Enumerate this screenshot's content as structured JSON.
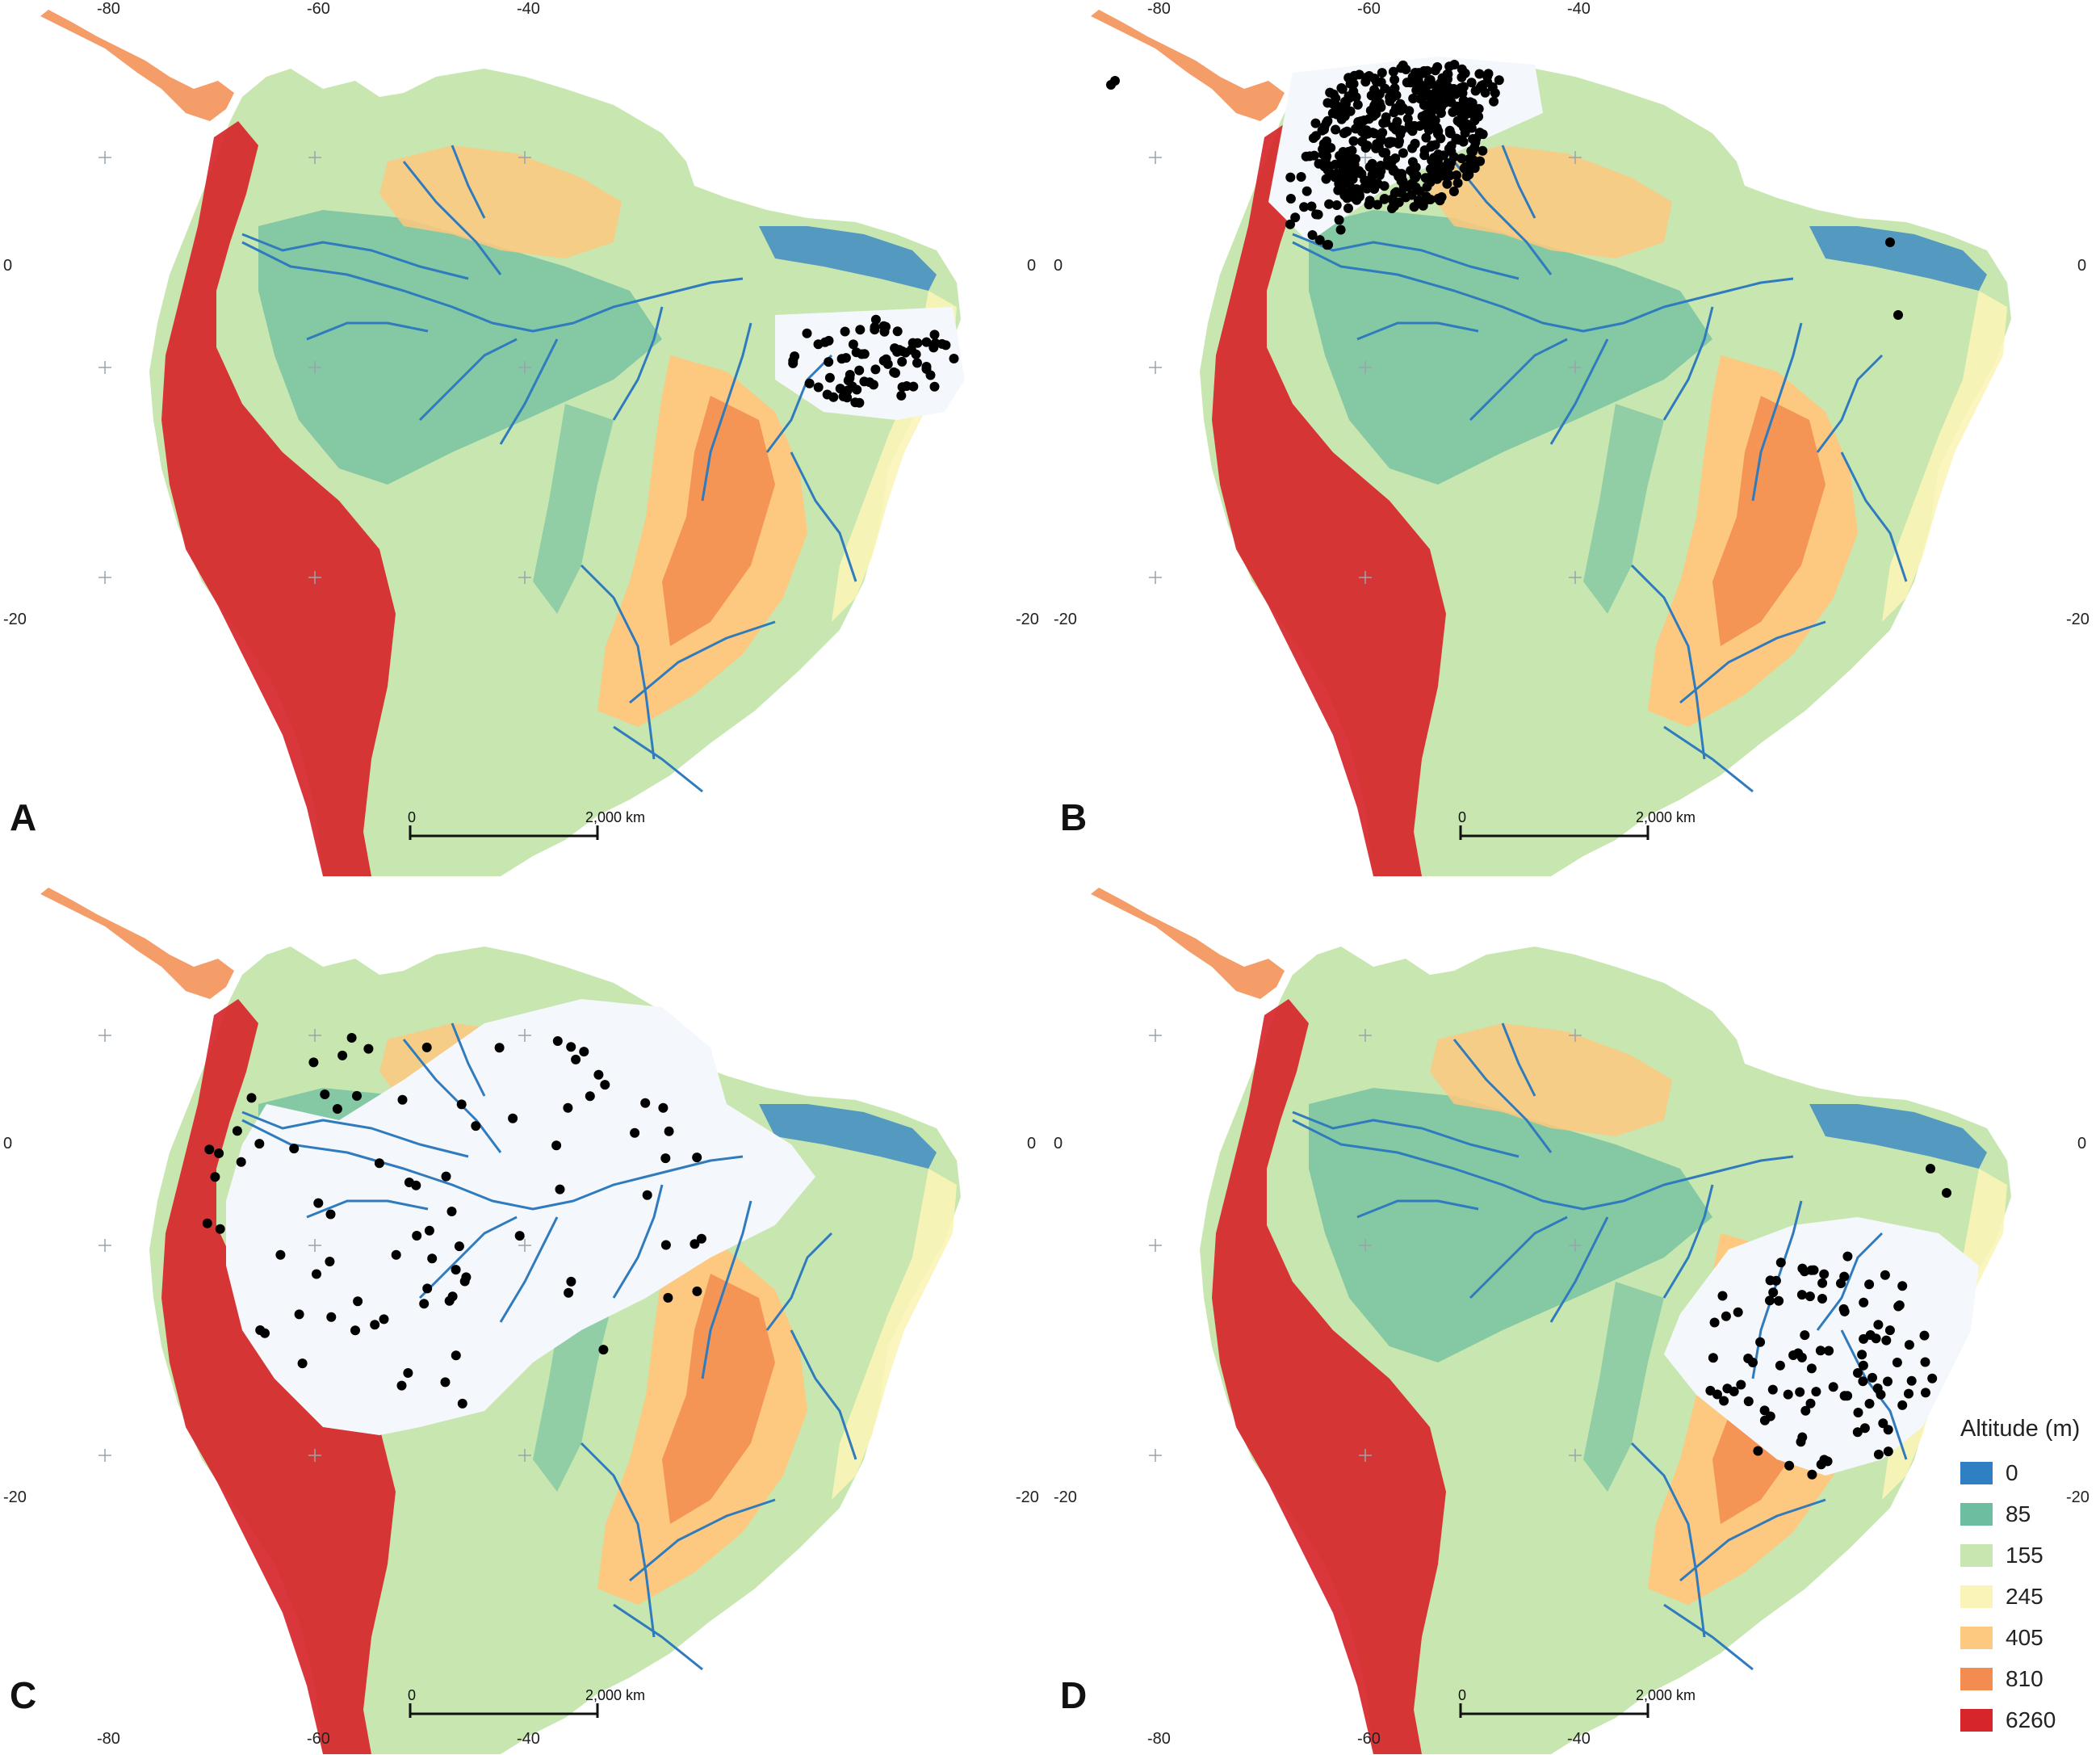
{
  "panels": [
    {
      "id": "A",
      "letter": "A"
    },
    {
      "id": "B",
      "letter": "B"
    },
    {
      "id": "C",
      "letter": "C"
    },
    {
      "id": "D",
      "letter": "D"
    }
  ],
  "axis_labels": {
    "lon_top": [
      "-80",
      "-60",
      "-40"
    ],
    "lat_left": [
      "0",
      "-20"
    ],
    "lat_right": [
      "0",
      "-20"
    ],
    "lon_bottom": [
      "-80",
      "-60",
      "-40"
    ]
  },
  "scale_bar": {
    "start": "0",
    "end": "2,000 km"
  },
  "legend": {
    "title": "Altitude (m)",
    "items": [
      {
        "label": "0",
        "color": "#2e7fc4"
      },
      {
        "label": "85",
        "color": "#6dbea0"
      },
      {
        "label": "155",
        "color": "#c8e6b0"
      },
      {
        "label": "245",
        "color": "#fbf4b8"
      },
      {
        "label": "405",
        "color": "#fdc87f"
      },
      {
        "label": "810",
        "color": "#f28c4f"
      },
      {
        "label": "6260",
        "color": "#d7262b"
      }
    ]
  },
  "colors": {
    "river": "#2f7bbd",
    "occurrence_point": "#000000",
    "masked_area": "#f4f7fb"
  }
}
